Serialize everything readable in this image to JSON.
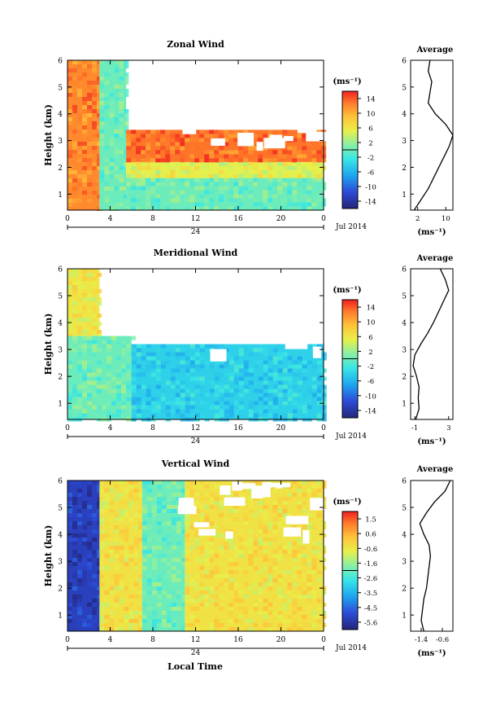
{
  "figure": {
    "xlabel": "Local Time"
  },
  "panels": [
    {
      "title": "Zonal Wind",
      "ylabel": "Height (km)",
      "y_ticks": [
        "1",
        "2",
        "3",
        "4",
        "5",
        "6"
      ],
      "x_ticks": [
        "0",
        "4",
        "8",
        "12",
        "16",
        "20",
        "0"
      ],
      "date_tick": "24",
      "date_label": "Jul 2014",
      "colorbar": {
        "unit": "(ms⁻¹)",
        "ticks": [
          "14",
          "10",
          "6",
          "2",
          "-2",
          "-6",
          "-10",
          "-14"
        ],
        "range": [
          -16,
          16
        ]
      },
      "average": {
        "title": "Average",
        "x_ticks": [
          "2",
          "10"
        ],
        "unit": "(ms⁻¹)",
        "y_ticks": [
          "1",
          "2",
          "3",
          "4",
          "5",
          "6"
        ]
      }
    },
    {
      "title": "Meridional Wind",
      "ylabel": "Height (km)",
      "y_ticks": [
        "1",
        "2",
        "3",
        "4",
        "5",
        "6"
      ],
      "x_ticks": [
        "0",
        "4",
        "8",
        "12",
        "16",
        "20",
        "0"
      ],
      "date_tick": "24",
      "date_label": "Jul 2014",
      "colorbar": {
        "unit": "(ms⁻¹)",
        "ticks": [
          "14",
          "10",
          "6",
          "2",
          "-2",
          "-6",
          "-10",
          "-14"
        ],
        "range": [
          -16,
          16
        ]
      },
      "average": {
        "title": "Average",
        "x_ticks": [
          "-1",
          "3"
        ],
        "unit": "(ms⁻¹)",
        "y_ticks": [
          "1",
          "2",
          "3",
          "4",
          "5",
          "6"
        ]
      }
    },
    {
      "title": "Vertical Wind",
      "ylabel": "Height (km)",
      "y_ticks": [
        "1",
        "2",
        "3",
        "4",
        "5",
        "6"
      ],
      "x_ticks": [
        "0",
        "4",
        "8",
        "12",
        "16",
        "20",
        "0"
      ],
      "date_tick": "24",
      "date_label": "Jul 2014",
      "colorbar": {
        "unit": "(ms⁻¹)",
        "ticks": [
          "1.5",
          "0.6",
          "-0.6",
          "-1.6",
          "-2.6",
          "-3.5",
          "-4.5",
          "-5.6"
        ],
        "range": [
          -6.0,
          2.0
        ]
      },
      "average": {
        "title": "Average",
        "x_ticks": [
          "-1.4",
          "-0.6"
        ],
        "unit": "(ms⁻¹)",
        "y_ticks": [
          "1",
          "2",
          "3",
          "4",
          "5",
          "6"
        ]
      }
    }
  ],
  "chart_data": [
    {
      "type": "heatmap",
      "title": "Zonal Wind",
      "xlabel": "Local Time",
      "ylabel": "Height (km)",
      "x_range_hours": [
        0,
        24
      ],
      "ylim_km": [
        0.4,
        6.0
      ],
      "value_range": [
        -16,
        16
      ],
      "unit": "(ms⁻¹)",
      "cells": [
        {
          "t": [
            0,
            3
          ],
          "z": [
            0.4,
            6.0
          ],
          "value": 12
        },
        {
          "t": [
            3,
            5.5
          ],
          "z": [
            0.4,
            6.0
          ],
          "value": 0
        },
        {
          "t": [
            5.5,
            24
          ],
          "z": [
            0.4,
            1.6
          ],
          "value": 0
        },
        {
          "t": [
            5.5,
            24
          ],
          "z": [
            1.6,
            2.2
          ],
          "value": 5
        },
        {
          "t": [
            5.5,
            24
          ],
          "z": [
            2.2,
            3.4
          ],
          "value": 13
        }
      ],
      "profile": {
        "title": "Average",
        "x_label": "(ms⁻¹)",
        "xlim": [
          0,
          12
        ],
        "z": [
          0.4,
          0.8,
          1.2,
          1.6,
          2.0,
          2.4,
          2.8,
          3.2,
          3.6,
          4.0,
          4.4,
          4.8,
          5.2,
          5.6,
          6.0
        ],
        "x": [
          1.0,
          3.0,
          5.0,
          6.5,
          8.0,
          9.5,
          11.0,
          12.0,
          10.0,
          7.0,
          5.0,
          5.5,
          6.0,
          5.0,
          5.5
        ]
      }
    },
    {
      "type": "heatmap",
      "title": "Meridional Wind",
      "xlabel": "Local Time",
      "ylabel": "Height (km)",
      "x_range_hours": [
        0,
        24
      ],
      "ylim_km": [
        0.4,
        6.0
      ],
      "value_range": [
        -16,
        16
      ],
      "unit": "(ms⁻¹)",
      "cells": [
        {
          "t": [
            0,
            3
          ],
          "z": [
            3.5,
            6.0
          ],
          "value": 6
        },
        {
          "t": [
            0,
            6
          ],
          "z": [
            0.4,
            3.5
          ],
          "value": 0
        },
        {
          "t": [
            6,
            24
          ],
          "z": [
            0.4,
            3.2
          ],
          "value": -4
        }
      ],
      "profile": {
        "title": "Average",
        "x_label": "(ms⁻¹)",
        "xlim": [
          -1.5,
          3.5
        ],
        "z": [
          0.4,
          0.8,
          1.2,
          1.6,
          2.0,
          2.4,
          2.8,
          3.2,
          3.6,
          4.0,
          4.4,
          4.8,
          5.2,
          5.6,
          6.0
        ],
        "x": [
          -0.9,
          -0.5,
          -0.6,
          -0.5,
          -0.8,
          -1.2,
          -1.0,
          -0.3,
          0.5,
          1.2,
          1.8,
          2.4,
          3.0,
          2.6,
          2.0
        ]
      }
    },
    {
      "type": "heatmap",
      "title": "Vertical Wind",
      "xlabel": "Local Time",
      "ylabel": "Height (km)",
      "x_range_hours": [
        0,
        24
      ],
      "ylim_km": [
        0.4,
        6.0
      ],
      "value_range": [
        -6.0,
        2.0
      ],
      "unit": "(ms⁻¹)",
      "cells": [
        {
          "t": [
            0,
            3
          ],
          "z": [
            0.4,
            6.0
          ],
          "value": -5.2
        },
        {
          "t": [
            3,
            7
          ],
          "z": [
            0.4,
            6.0
          ],
          "value": -0.4
        },
        {
          "t": [
            7,
            11
          ],
          "z": [
            0.4,
            6.0
          ],
          "value": -2.0
        },
        {
          "t": [
            11,
            24
          ],
          "z": [
            0.4,
            6.0
          ],
          "value": -0.4
        }
      ],
      "profile": {
        "title": "Average",
        "x_label": "(ms⁻¹)",
        "xlim": [
          -1.8,
          -0.2
        ],
        "z": [
          0.4,
          0.8,
          1.2,
          1.6,
          2.0,
          2.4,
          2.8,
          3.2,
          3.6,
          4.0,
          4.4,
          4.8,
          5.2,
          5.6,
          6.0
        ],
        "x": [
          -1.3,
          -1.4,
          -1.35,
          -1.3,
          -1.2,
          -1.15,
          -1.1,
          -1.05,
          -1.1,
          -1.3,
          -1.45,
          -1.2,
          -0.9,
          -0.5,
          -0.3
        ]
      }
    }
  ]
}
